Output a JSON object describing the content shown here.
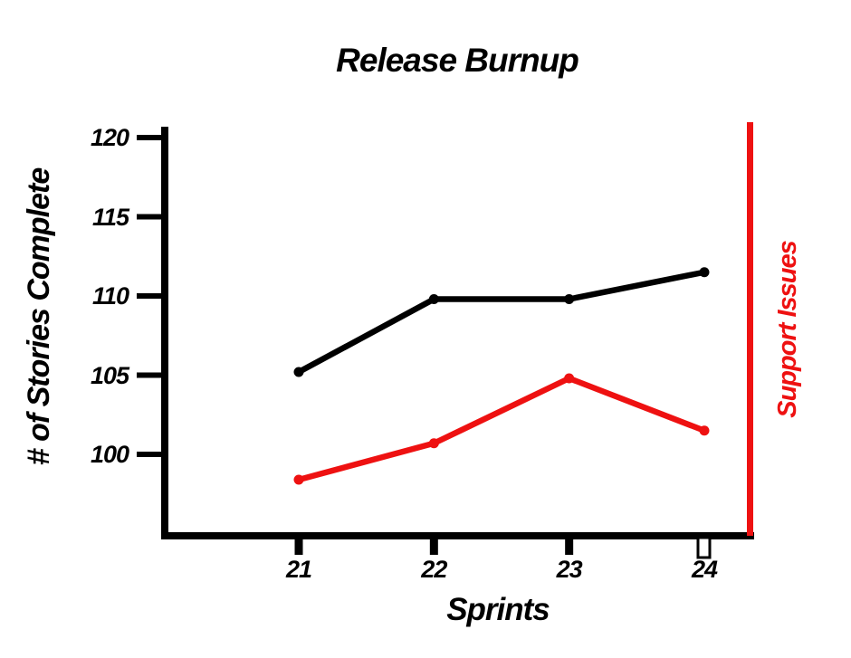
{
  "chart_data": {
    "type": "line",
    "title": "Release Burnup",
    "xlabel": "Sprints",
    "ylabel": "# of Stories Complete",
    "right_axis_label": "Support Issues",
    "x": [
      21,
      22,
      23,
      24
    ],
    "xtick_labels": [
      "21",
      "22",
      "23",
      "24"
    ],
    "yticks": [
      100,
      105,
      110,
      115,
      120
    ],
    "ytick_labels": [
      "100",
      "105",
      "110",
      "115",
      "120"
    ],
    "ylim": [
      96.5,
      120.6
    ],
    "grid": false,
    "legend": "none",
    "series": [
      {
        "name": "# of Stories Complete",
        "color": "#000000",
        "marker": "circle",
        "values": [
          105.2,
          109.8,
          109.8,
          111.5
        ]
      },
      {
        "name": "Support Issues",
        "color": "#ee1111",
        "marker": "circle",
        "values": [
          98.4,
          100.7,
          104.8,
          101.5
        ]
      }
    ],
    "right_boundary_line": {
      "color": "#ee1111"
    },
    "last_xtick_style": "hollow",
    "colors": {
      "axis": "#000000",
      "accent_red": "#ee1111",
      "background": "#ffffff"
    }
  }
}
